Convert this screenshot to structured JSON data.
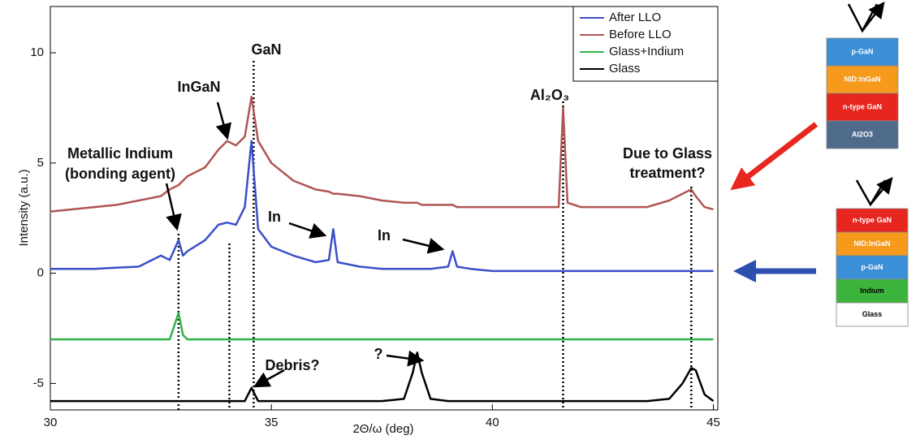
{
  "chart_data": {
    "type": "line",
    "xlabel": "2Θ/ω (deg)",
    "ylabel": "Intensity (a.u.)",
    "x": [
      30,
      30.5,
      31,
      31.5,
      32,
      32.5,
      32.7,
      32.9,
      33.0,
      33.1,
      33.5,
      33.8,
      34.0,
      34.2,
      34.4,
      34.55,
      34.7,
      35,
      35.5,
      36,
      36.3,
      36.4,
      36.5,
      37,
      37.5,
      38,
      38.2,
      38.3,
      38.4,
      38.6,
      39,
      39.1,
      39.2,
      39.5,
      40,
      40.5,
      41,
      41.5,
      41.6,
      41.7,
      42,
      42.5,
      43,
      43.5,
      44,
      44.3,
      44.5,
      44.6,
      44.8,
      45
    ],
    "series": [
      {
        "name": "After LLO",
        "color": "#3a4fc8",
        "values": [
          0.2,
          0.2,
          0.2,
          0.25,
          0.3,
          0.8,
          0.6,
          1.5,
          0.8,
          1.0,
          1.5,
          2.2,
          2.3,
          2.2,
          3.0,
          6.0,
          2.0,
          1.2,
          0.8,
          0.5,
          0.6,
          2.0,
          0.5,
          0.3,
          0.2,
          0.2,
          0.2,
          0.2,
          0.2,
          0.2,
          0.3,
          1.0,
          0.3,
          0.2,
          0.1,
          0.1,
          0.1,
          0.1,
          0.1,
          0.1,
          0.1,
          0.1,
          0.1,
          0.1,
          0.1,
          0.1,
          0.1,
          0.1,
          0.1,
          0.1
        ]
      },
      {
        "name": "Before LLO",
        "color": "#b05555",
        "values": [
          2.8,
          2.9,
          3.0,
          3.1,
          3.3,
          3.5,
          3.8,
          4.0,
          4.2,
          4.4,
          4.8,
          5.6,
          6.0,
          5.8,
          6.2,
          8.0,
          6.0,
          5.0,
          4.2,
          3.8,
          3.7,
          3.6,
          3.6,
          3.5,
          3.3,
          3.2,
          3.2,
          3.2,
          3.1,
          3.1,
          3.1,
          3.1,
          3.0,
          3.0,
          3.0,
          3.0,
          3.0,
          3.0,
          7.5,
          3.2,
          3.0,
          3.0,
          3.0,
          3.0,
          3.3,
          3.6,
          3.8,
          3.5,
          3.0,
          2.9
        ]
      },
      {
        "name": "Glass+Indium",
        "color": "#2fb34a",
        "values": [
          -3.0,
          -3.0,
          -3.0,
          -3.0,
          -3.0,
          -3.0,
          -3.0,
          -1.8,
          -2.8,
          -3.0,
          -3.0,
          -3.0,
          -3.0,
          -3.0,
          -3.0,
          -3.0,
          -3.0,
          -3.0,
          -3.0,
          -3.0,
          -3.0,
          -3.0,
          -3.0,
          -3.0,
          -3.0,
          -3.0,
          -3.0,
          -3.0,
          -3.0,
          -3.0,
          -3.0,
          -3.0,
          -3.0,
          -3.0,
          -3.0,
          -3.0,
          -3.0,
          -3.0,
          -3.0,
          -3.0,
          -3.0,
          -3.0,
          -3.0,
          -3.0,
          -3.0,
          -3.0,
          -3.0,
          -3.0,
          -3.0,
          -3.0
        ]
      },
      {
        "name": "Glass",
        "color": "#000000",
        "values": [
          -5.8,
          -5.8,
          -5.8,
          -5.8,
          -5.8,
          -5.8,
          -5.8,
          -5.8,
          -5.8,
          -5.8,
          -5.8,
          -5.8,
          -5.8,
          -5.8,
          -5.8,
          -5.2,
          -5.8,
          -5.8,
          -5.8,
          -5.8,
          -5.8,
          -5.8,
          -5.8,
          -5.8,
          -5.8,
          -5.7,
          -4.5,
          -3.6,
          -4.5,
          -5.7,
          -5.8,
          -5.8,
          -5.8,
          -5.8,
          -5.8,
          -5.8,
          -5.8,
          -5.8,
          -5.8,
          -5.8,
          -5.8,
          -5.8,
          -5.8,
          -5.8,
          -5.7,
          -5.0,
          -4.3,
          -4.4,
          -5.5,
          -5.8
        ]
      }
    ],
    "xlim": [
      30,
      45.1
    ],
    "ylim": [
      -6.2,
      12.1
    ],
    "xticks": [
      30,
      35,
      40,
      45
    ],
    "yticks": [
      -5,
      0,
      5,
      10
    ],
    "vlines": [
      32.9,
      34.05,
      34.6,
      41.6,
      44.5
    ],
    "legend": "upper right",
    "annotations": [
      "GaN",
      "InGaN",
      "Metallic Indium",
      "(bonding agent)",
      "In",
      "In",
      "Al₂O₃",
      "Due to Glass",
      "treatment?",
      "Debris?",
      "?"
    ]
  },
  "layer_stacks": [
    {
      "layers": [
        "p-GaN",
        "NID:InGaN",
        "n-type GaN",
        "Al2O3"
      ]
    },
    {
      "layers": [
        "n-type GaN",
        "NID:InGaN",
        "p-GaN",
        "Indium",
        "Glass"
      ]
    }
  ]
}
